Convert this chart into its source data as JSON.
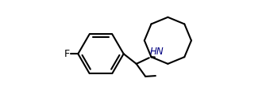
{
  "bg_color": "#ffffff",
  "line_color": "#000000",
  "hn_color": "#000080",
  "f_color": "#000000",
  "line_width": 1.5,
  "figsize": [
    3.35,
    1.28
  ],
  "dpi": 100,
  "bx": 0.28,
  "by": 0.5,
  "br": 0.17,
  "cox": 0.78,
  "coy": 0.6,
  "cor": 0.175
}
